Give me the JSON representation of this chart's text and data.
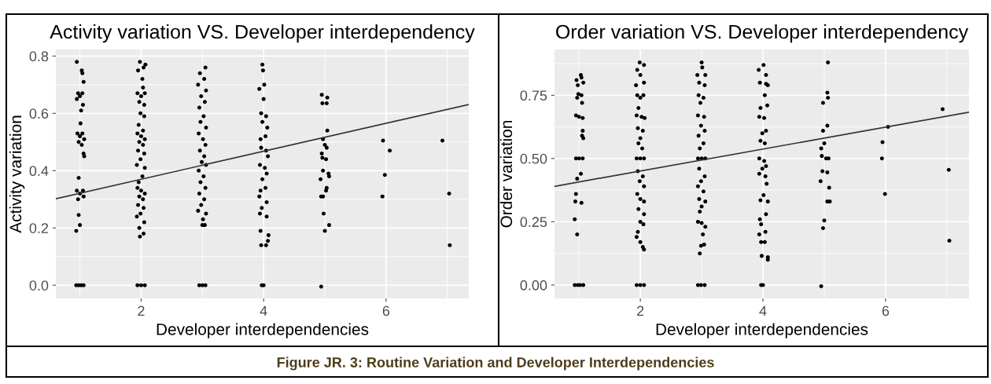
{
  "chart_data": [
    {
      "type": "scatter",
      "title": "Activity variation VS. Developer interdependency",
      "xlabel": "Developer interdependencies",
      "ylabel": "Activity variation",
      "xlim": [
        0.607,
        7.35
      ],
      "ylim": [
        -0.046,
        0.823
      ],
      "xticks": [
        2,
        4,
        6
      ],
      "yticks": [
        {
          "value": 0,
          "label": "0.0"
        },
        0.2,
        0.4,
        0.6,
        0.8
      ],
      "grid": true,
      "marker": "circle",
      "annotations": [
        "Figure JR. 3: Routine Variation and Developer Interdependencies"
      ],
      "series": [
        {
          "color": "#000000",
          "x": [
            0.95,
            1.03,
            1.04,
            1.06,
            0.97,
            1.0,
            1.04,
            0.95,
            1.05,
            1.02,
            1.01,
            0.96,
            1.0,
            1.04,
            1.07,
            0.98,
            1.03,
            1.06,
            1.07,
            0.98,
            0.95,
            1.0,
            1.05,
            0.97,
            1.06,
            0.98,
            1.0,
            0.94,
            0.94,
            0.98,
            1.02,
            1.06,
            1.98,
            2.07,
            1.95,
            2.04,
            2.02,
            2.03,
            1.94,
            2.0,
            2.06,
            1.97,
            2.05,
            1.99,
            2.05,
            1.96,
            2.03,
            1.94,
            2.0,
            2.06,
            1.97,
            2.03,
            1.95,
            2.05,
            1.99,
            1.93,
            2.06,
            2.02,
            1.96,
            1.94,
            2.0,
            2.06,
            1.97,
            2.03,
            1.95,
            2.04,
            1.99,
            1.93,
            2.05,
            1.97,
            2.04,
            1.98,
            1.94,
            2.0,
            2.06,
            3.05,
            2.96,
            3.03,
            2.93,
            3.06,
            2.98,
            3.04,
            2.95,
            3.02,
            2.97,
            3.06,
            2.94,
            3.01,
            3.05,
            2.96,
            3.03,
            2.99,
            3.06,
            2.94,
            3.02,
            2.97,
            3.05,
            2.95,
            3.03,
            2.98,
            2.93,
            3.06,
            3.01,
            3.0,
            3.04,
            2.95,
            3.0,
            3.05,
            3.98,
            3.99,
            4.01,
            3.93,
            4.0,
            3.96,
            4.04,
            3.98,
            4.06,
            4.03,
            3.95,
            3.96,
            4.04,
            4.07,
            3.94,
            4.02,
            4.05,
            3.98,
            4.03,
            3.95,
            3.93,
            4.05,
            3.97,
            3.94,
            4.05,
            3.95,
            4.08,
            4.07,
            3.96,
            4.04,
            3.97,
            4.0,
            4.95,
            5.04,
            4.96,
            5.03,
            5.04,
            4.97,
            5.0,
            5.03,
            4.95,
            4.96,
            5.02,
            4.97,
            5.06,
            5.07,
            4.93,
            5.03,
            5.02,
            4.94,
            4.97,
            4.98,
            5.07,
            5.0,
            4.94,
            5.95,
            6.06,
            5.98,
            5.94,
            6.92,
            7.03,
            7.04
          ],
          "values": [
            0.78,
            0.75,
            0.74,
            0.71,
            0.67,
            0.66,
            0.67,
            0.65,
            0.63,
            0.61,
            0.565,
            0.53,
            0.52,
            0.53,
            0.51,
            0.5,
            0.49,
            0.46,
            0.45,
            0.375,
            0.33,
            0.32,
            0.33,
            0.3,
            0.31,
            0.245,
            0.21,
            0.19,
            0.0,
            0.0,
            0.0,
            0.0,
            0.78,
            0.77,
            0.75,
            0.76,
            0.72,
            0.69,
            0.67,
            0.66,
            0.67,
            0.64,
            0.63,
            0.6,
            0.59,
            0.56,
            0.54,
            0.53,
            0.52,
            0.51,
            0.5,
            0.49,
            0.47,
            0.46,
            0.44,
            0.42,
            0.41,
            0.38,
            0.36,
            0.34,
            0.33,
            0.32,
            0.31,
            0.3,
            0.28,
            0.27,
            0.25,
            0.24,
            0.22,
            0.2,
            0.18,
            0.17,
            0.0,
            0.0,
            0.0,
            0.76,
            0.74,
            0.72,
            0.7,
            0.68,
            0.66,
            0.64,
            0.62,
            0.59,
            0.57,
            0.55,
            0.53,
            0.51,
            0.49,
            0.47,
            0.45,
            0.43,
            0.42,
            0.4,
            0.38,
            0.36,
            0.34,
            0.32,
            0.3,
            0.28,
            0.26,
            0.25,
            0.23,
            0.21,
            0.21,
            0.0,
            0.0,
            0.0,
            0.77,
            0.75,
            0.7,
            0.685,
            0.65,
            0.6,
            0.59,
            0.57,
            0.55,
            0.52,
            0.51,
            0.48,
            0.47,
            0.45,
            0.42,
            0.41,
            0.39,
            0.37,
            0.34,
            0.33,
            0.31,
            0.29,
            0.27,
            0.25,
            0.24,
            0.19,
            0.175,
            0.155,
            0.14,
            0.14,
            0.0,
            0.0,
            0.665,
            0.655,
            0.635,
            0.635,
            0.54,
            0.51,
            0.49,
            0.48,
            0.46,
            0.445,
            0.44,
            0.4,
            0.39,
            0.38,
            0.37,
            0.34,
            0.33,
            0.31,
            0.31,
            0.25,
            0.21,
            0.19,
            -0.005,
            0.505,
            0.47,
            0.385,
            0.31,
            0.505,
            0.32,
            0.14
          ]
        },
        {
          "type": "line",
          "color": "#333333",
          "marker": "none",
          "x": [
            0.607,
            7.35
          ],
          "values": [
            0.302,
            0.631
          ]
        }
      ]
    },
    {
      "type": "scatter",
      "title": "Order variation VS. Developer interdependency",
      "xlabel": "Developer interdependencies",
      "ylabel": "Order variation",
      "xlim": [
        0.6,
        7.36
      ],
      "ylim": [
        -0.053,
        0.931
      ],
      "xticks": [
        2,
        4,
        6
      ],
      "yticks": [
        {
          "value": 0,
          "label": "0.00"
        },
        {
          "value": 0.25,
          "label": "0.25"
        },
        {
          "value": 0.5,
          "label": "0.50"
        },
        {
          "value": 0.75,
          "label": "0.75"
        }
      ],
      "grid": true,
      "marker": "circle",
      "series": [
        {
          "color": "#000000",
          "x": [
            1.03,
            1.04,
            0.96,
            1.07,
            0.98,
            0.99,
            1.04,
            0.97,
            1.05,
            0.95,
            1.0,
            1.06,
            1.06,
            1.05,
            1.07,
            0.95,
            1.0,
            1.06,
            1.03,
            0.97,
            0.95,
            0.94,
            1.04,
            0.93,
            0.97,
            0.93,
            0.98,
            1.02,
            1.07,
            1.99,
            2.06,
            1.95,
            2.0,
            2.06,
            1.93,
            1.95,
            2.05,
            2.0,
            1.97,
            1.94,
            2.02,
            2.07,
            1.96,
            2.04,
            2.0,
            1.97,
            2.03,
            1.94,
            2.0,
            2.06,
            1.96,
            2.04,
            1.99,
            2.06,
            1.95,
            2.0,
            2.06,
            1.97,
            2.06,
            2.0,
            2.05,
            1.96,
            1.94,
            2.0,
            2.04,
            2.06,
            1.94,
            2.0,
            2.06,
            3.0,
            3.01,
            2.93,
            3.06,
            2.96,
            3.05,
            2.95,
            3.03,
            2.98,
            2.94,
            3.04,
            2.99,
            3.05,
            2.95,
            3.03,
            2.97,
            2.94,
            3.0,
            3.06,
            2.96,
            3.05,
            2.99,
            2.94,
            3.03,
            2.96,
            3.06,
            3.0,
            2.97,
            2.94,
            3.0,
            3.06,
            3.02,
            3.04,
            2.99,
            2.97,
            2.94,
            2.99,
            3.05,
            4.01,
            3.93,
            4.05,
            3.95,
            4.05,
            4.08,
            4.03,
            4.07,
            3.96,
            3.94,
            4.02,
            4.05,
            3.99,
            3.96,
            4.03,
            3.94,
            4.02,
            4.05,
            3.99,
            3.94,
            4.04,
            4.06,
            4.01,
            3.96,
            4.08,
            4.05,
            3.95,
            3.97,
            4.04,
            3.94,
            3.97,
            4.03,
            3.98,
            4.08,
            4.08,
            3.97,
            4.0,
            5.06,
            5.05,
            5.06,
            4.98,
            5.05,
            4.98,
            5.0,
            4.95,
            4.96,
            5.03,
            5.07,
            4.97,
            5.05,
            4.94,
            5.08,
            5.05,
            5.09,
            5.0,
            4.98,
            4.95,
            6.04,
            5.95,
            5.94,
            5.99,
            6.93,
            7.03,
            7.04
          ],
          "values": [
            0.83,
            0.82,
            0.81,
            0.8,
            0.79,
            0.755,
            0.75,
            0.74,
            0.72,
            0.67,
            0.665,
            0.66,
            0.61,
            0.59,
            0.58,
            0.5,
            0.5,
            0.5,
            0.44,
            0.42,
            0.36,
            0.33,
            0.325,
            0.26,
            0.2,
            0.0,
            0.0,
            0.0,
            0.0,
            0.88,
            0.87,
            0.85,
            0.83,
            0.8,
            0.79,
            0.75,
            0.75,
            0.74,
            0.7,
            0.67,
            0.665,
            0.66,
            0.62,
            0.61,
            0.58,
            0.56,
            0.54,
            0.5,
            0.5,
            0.5,
            0.45,
            0.43,
            0.41,
            0.39,
            0.36,
            0.34,
            0.33,
            0.3,
            0.28,
            0.25,
            0.24,
            0.21,
            0.19,
            0.17,
            0.15,
            0.14,
            0.0,
            0.0,
            0.0,
            0.88,
            0.86,
            0.83,
            0.83,
            0.8,
            0.79,
            0.75,
            0.74,
            0.72,
            0.67,
            0.665,
            0.63,
            0.61,
            0.59,
            0.56,
            0.54,
            0.5,
            0.5,
            0.5,
            0.46,
            0.43,
            0.41,
            0.39,
            0.37,
            0.34,
            0.33,
            0.31,
            0.29,
            0.25,
            0.245,
            0.23,
            0.2,
            0.16,
            0.155,
            0.125,
            0.0,
            0.0,
            0.0,
            0.87,
            0.85,
            0.83,
            0.8,
            0.795,
            0.79,
            0.75,
            0.71,
            0.7,
            0.665,
            0.66,
            0.61,
            0.6,
            0.57,
            0.56,
            0.5,
            0.49,
            0.47,
            0.46,
            0.44,
            0.43,
            0.4,
            0.355,
            0.335,
            0.33,
            0.28,
            0.26,
            0.24,
            0.21,
            0.2,
            0.17,
            0.17,
            0.115,
            0.11,
            0.1,
            0.0,
            0.0,
            0.88,
            0.76,
            0.74,
            0.72,
            0.63,
            0.61,
            0.56,
            0.54,
            0.51,
            0.5,
            0.5,
            0.45,
            0.445,
            0.41,
            0.385,
            0.33,
            0.33,
            0.255,
            0.225,
            -0.005,
            0.625,
            0.565,
            0.5,
            0.36,
            0.695,
            0.455,
            0.175
          ]
        },
        {
          "type": "line",
          "color": "#333333",
          "marker": "none",
          "x": [
            0.6,
            7.36
          ],
          "values": [
            0.39,
            0.683
          ]
        }
      ]
    }
  ]
}
